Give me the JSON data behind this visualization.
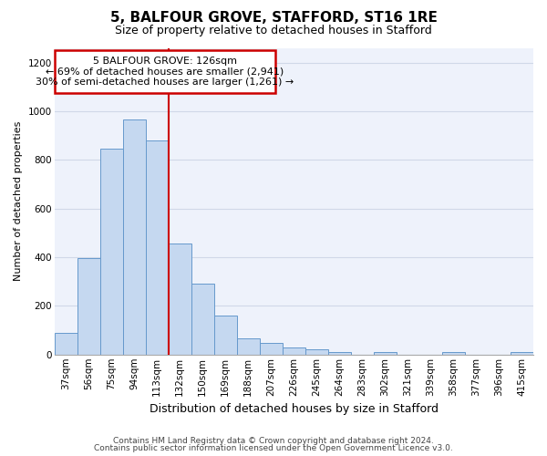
{
  "title1": "5, BALFOUR GROVE, STAFFORD, ST16 1RE",
  "title2": "Size of property relative to detached houses in Stafford",
  "xlabel": "Distribution of detached houses by size in Stafford",
  "ylabel": "Number of detached properties",
  "categories": [
    "37sqm",
    "56sqm",
    "75sqm",
    "94sqm",
    "113sqm",
    "132sqm",
    "150sqm",
    "169sqm",
    "188sqm",
    "207sqm",
    "226sqm",
    "245sqm",
    "264sqm",
    "283sqm",
    "302sqm",
    "321sqm",
    "339sqm",
    "358sqm",
    "377sqm",
    "396sqm",
    "415sqm"
  ],
  "values": [
    90,
    395,
    845,
    965,
    880,
    455,
    290,
    160,
    65,
    48,
    30,
    20,
    10,
    0,
    10,
    0,
    0,
    10,
    0,
    0,
    10
  ],
  "bar_color": "#c5d8f0",
  "bar_edge_color": "#6699cc",
  "grid_color": "#d0d8e8",
  "background_color": "#eef2fb",
  "red_line_x": 4.5,
  "annotation_text": "5 BALFOUR GROVE: 126sqm\n← 69% of detached houses are smaller (2,941)\n30% of semi-detached houses are larger (1,261) →",
  "annotation_box_facecolor": "#ffffff",
  "annotation_box_edgecolor": "#cc0000",
  "ylim": [
    0,
    1260
  ],
  "yticks": [
    0,
    200,
    400,
    600,
    800,
    1000,
    1200
  ],
  "footer1": "Contains HM Land Registry data © Crown copyright and database right 2024.",
  "footer2": "Contains public sector information licensed under the Open Government Licence v3.0.",
  "title1_fontsize": 11,
  "title2_fontsize": 9,
  "xlabel_fontsize": 9,
  "ylabel_fontsize": 8,
  "tick_fontsize": 7.5,
  "annotation_fontsize": 8,
  "footer_fontsize": 6.5
}
